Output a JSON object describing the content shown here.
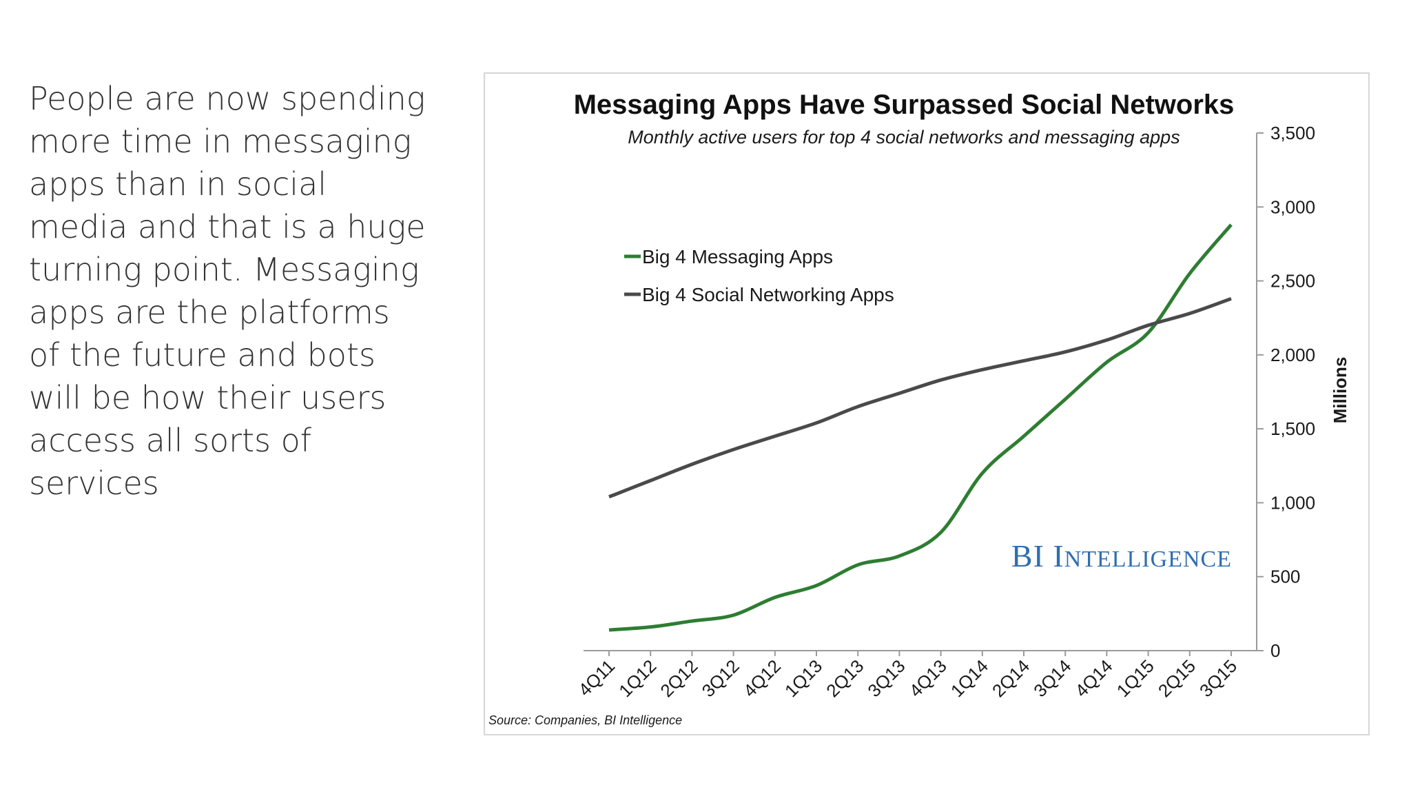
{
  "slide": {
    "body_text": "People are now spending more time in messaging apps than in social media and that is a huge turning point. Messaging apps are the platforms of the future and bots will be how their users access all sorts of services"
  },
  "chart_data": {
    "type": "line",
    "title": "Messaging Apps Have Surpassed Social Networks",
    "subtitle": "Monthly active users for top 4 social networks and messaging apps",
    "ylabel": "Millions",
    "xlabel": "",
    "ylim": [
      0,
      3500
    ],
    "yticks": [
      "0",
      "500",
      "1,000",
      "1,500",
      "2,000",
      "2,500",
      "3,000",
      "3,500"
    ],
    "ytick_values": [
      0,
      500,
      1000,
      1500,
      2000,
      2500,
      3000,
      3500
    ],
    "y_axis_position": "right",
    "grid": false,
    "legend_position": "top-left",
    "categories": [
      "4Q11",
      "1Q12",
      "2Q12",
      "3Q12",
      "4Q12",
      "1Q13",
      "2Q13",
      "3Q13",
      "4Q13",
      "1Q14",
      "2Q14",
      "3Q14",
      "4Q14",
      "1Q15",
      "2Q15",
      "3Q15"
    ],
    "series": [
      {
        "name": "Big 4 Messaging Apps",
        "color": "#2e7d32",
        "values": [
          140,
          160,
          200,
          240,
          360,
          440,
          580,
          640,
          800,
          1200,
          1450,
          1700,
          1950,
          2150,
          2550,
          2880
        ]
      },
      {
        "name": "Big 4 Social Networking Apps",
        "color": "#4a4a4a",
        "values": [
          1040,
          1150,
          1260,
          1360,
          1450,
          1540,
          1650,
          1740,
          1830,
          1900,
          1960,
          2020,
          2100,
          2200,
          2280,
          2380
        ]
      }
    ],
    "source": "Source: Companies, BI Intelligence",
    "watermark": "BI INTELLIGENCE",
    "watermark_color": "#2f6db0"
  }
}
